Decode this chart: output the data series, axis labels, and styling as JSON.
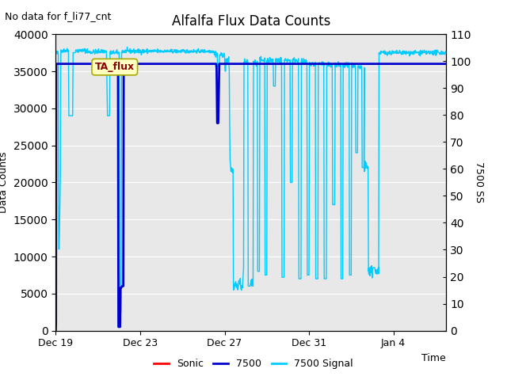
{
  "title": "Alfalfa Flux Data Counts",
  "top_left_text": "No data for f_li77_cnt",
  "xlabel": "Time",
  "ylabel_left": "Data Counts",
  "ylabel_right": "7500 SS",
  "ylim_left": [
    0,
    40000
  ],
  "ylim_right": [
    0,
    110
  ],
  "yticks_left": [
    0,
    5000,
    10000,
    15000,
    20000,
    25000,
    30000,
    35000,
    40000
  ],
  "yticks_right": [
    0,
    10,
    20,
    30,
    40,
    50,
    60,
    70,
    80,
    90,
    100,
    110
  ],
  "xtick_labels": [
    "Dec 19",
    "Dec 23",
    "Dec 27",
    "Dec 31",
    "Jan 4"
  ],
  "xtick_days": [
    0,
    4,
    8,
    12,
    16
  ],
  "total_days": 19,
  "xlim": [
    0,
    18.5
  ],
  "bg_color": "#e8e8e8",
  "fig_color": "#ffffff",
  "legend_entries": [
    "Sonic",
    "7500",
    "7500 Signal"
  ],
  "legend_colors": [
    "#ff0000",
    "#0000cd",
    "#00ccff"
  ],
  "annotation_text": "TA_flux",
  "sonic_color": "#ff0000",
  "n7500_color": "#0000cd",
  "signal_color": "#00ccff",
  "signal_scale": 363.636
}
